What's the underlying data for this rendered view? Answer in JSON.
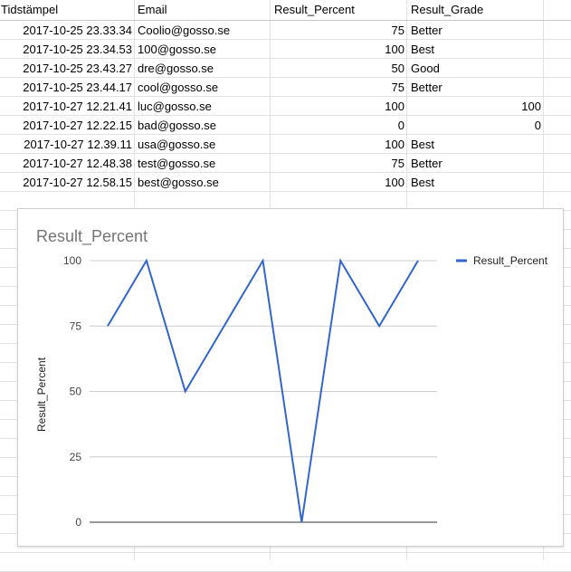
{
  "sheet": {
    "headers": [
      "Tidstämpel",
      "Email",
      "Result_Percent",
      "Result_Grade"
    ],
    "rows": [
      {
        "timestamp": "2017-10-25 23.33.34",
        "email": "Coolio@gosso.se",
        "percent": "75",
        "grade": "Better",
        "grade_numeric": false
      },
      {
        "timestamp": "2017-10-25 23.34.53",
        "email": "100@gosso.se",
        "percent": "100",
        "grade": "Best",
        "grade_numeric": false
      },
      {
        "timestamp": "2017-10-25 23.43.27",
        "email": "dre@gosso.se",
        "percent": "50",
        "grade": "Good",
        "grade_numeric": false
      },
      {
        "timestamp": "2017-10-25 23.44.17",
        "email": "cool@gosso.se",
        "percent": "75",
        "grade": "Better",
        "grade_numeric": false
      },
      {
        "timestamp": "2017-10-27 12.21.41",
        "email": "luc@gosso.se",
        "percent": "100",
        "grade": "100",
        "grade_numeric": true
      },
      {
        "timestamp": "2017-10-27 12.22.15",
        "email": "bad@gosso.se",
        "percent": "0",
        "grade": "0",
        "grade_numeric": true
      },
      {
        "timestamp": "2017-10-27 12.39.11",
        "email": "usa@gosso.se",
        "percent": "100",
        "grade": "Best",
        "grade_numeric": false
      },
      {
        "timestamp": "2017-10-27 12.48.38",
        "email": "test@gosso.se",
        "percent": "75",
        "grade": "Better",
        "grade_numeric": false
      },
      {
        "timestamp": "2017-10-27 12.58.15",
        "email": "best@gosso.se",
        "percent": "100",
        "grade": "Best",
        "grade_numeric": false
      }
    ]
  },
  "chart_data": {
    "type": "line",
    "title": "Result_Percent",
    "xlabel": "",
    "ylabel": "Result_Percent",
    "ylim": [
      0,
      100
    ],
    "yticks": [
      "0",
      "25",
      "50",
      "75",
      "100"
    ],
    "grid": true,
    "legend_position": "right",
    "series": [
      {
        "name": "Result_Percent",
        "color": "#3366cc",
        "values": [
          75,
          100,
          50,
          75,
          100,
          0,
          100,
          75,
          100
        ]
      }
    ]
  }
}
